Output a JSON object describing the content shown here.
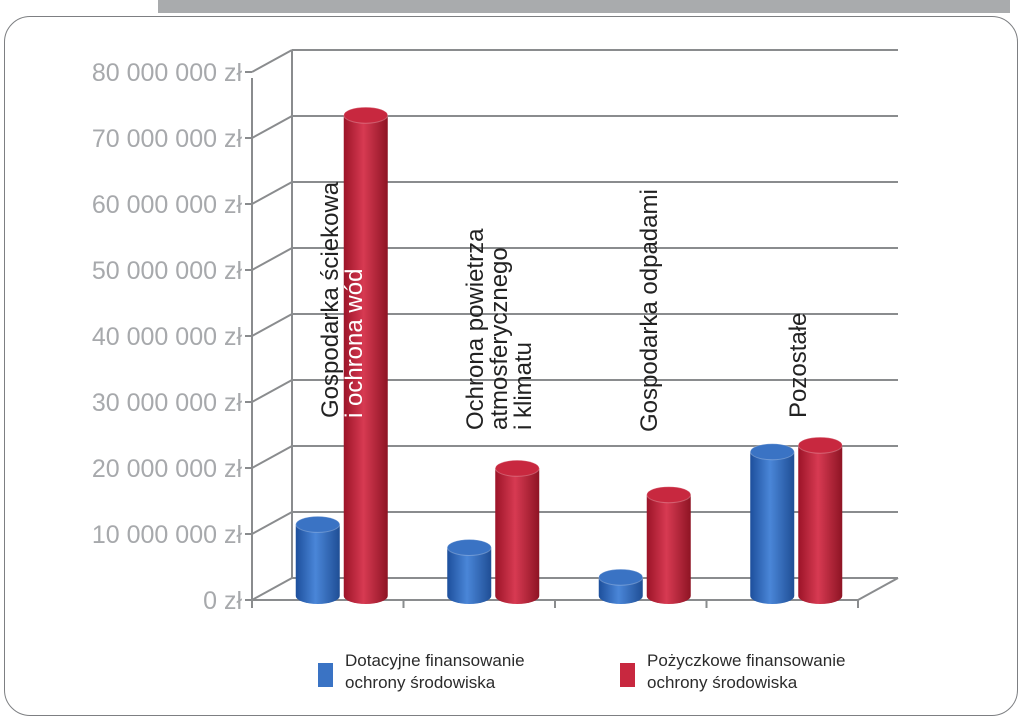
{
  "chart_data": {
    "type": "bar",
    "categories": [
      [
        "Gospodarka ściekowa",
        "i ochrona wód"
      ],
      [
        "Ochrona powietrza",
        "atmosferycznego",
        "i klimatu"
      ],
      [
        "Gospodarka odpadami"
      ],
      [
        "Pozostałe"
      ]
    ],
    "series": [
      {
        "name": "Dotacyjne finansowanie ochrony środowiska",
        "values": [
          11000000,
          7500000,
          3000000,
          22000000
        ]
      },
      {
        "name": "Pożyczkowe finansowanie ochrony środowiska",
        "values": [
          73000000,
          19500000,
          15500000,
          23000000
        ]
      }
    ],
    "yticks": [
      "0 zł",
      "10 000 000 zł",
      "20 000 000 zł",
      "30 000 000 zł",
      "40 000 000 zł",
      "50 000 000 zł",
      "60 000 000 zł",
      "70 000 000 zł",
      "80 000 000 zł"
    ],
    "ylim": [
      0,
      80000000
    ],
    "grid": true,
    "legend_position": "bottom",
    "colors": {
      "series1": "#3a73c4",
      "series2": "#c8283f",
      "grid": "#8a8c8e",
      "axis_text": "#a7a9ac"
    }
  },
  "legend": {
    "series1_line1": "Dotacyjne finansowanie",
    "series1_line2": "ochrony środowiska",
    "series2_line1": "Pożyczkowe finansowanie",
    "series2_line2": "ochrony środowiska"
  }
}
